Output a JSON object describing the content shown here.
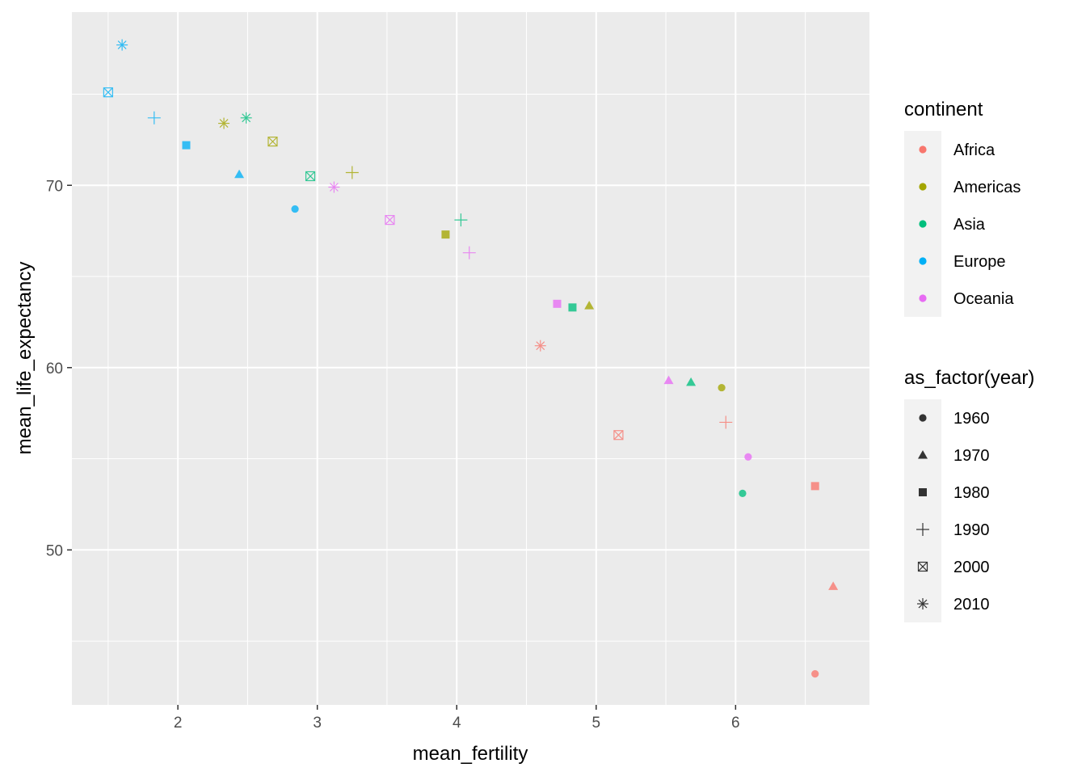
{
  "chart_data": {
    "type": "scatter",
    "xlabel": "mean_fertility",
    "ylabel": "mean_life_expectancy",
    "xlim": [
      1.24,
      6.96
    ],
    "ylim": [
      41.5,
      79.5
    ],
    "x_ticks": [
      2,
      3,
      4,
      5,
      6
    ],
    "y_ticks": [
      50,
      60,
      70
    ],
    "x_tick_labels": [
      "2",
      "3",
      "4",
      "5",
      "6"
    ],
    "y_tick_labels": [
      "50",
      "60",
      "70"
    ],
    "grid": true,
    "legend_position": "right",
    "colors": {
      "Africa": "#F8766D",
      "Americas": "#A3A500",
      "Asia": "#00BF7D",
      "Europe": "#00B0F6",
      "Oceania": "#E76BF3"
    },
    "shapes": {
      "1960": "circle",
      "1970": "triangle",
      "1980": "square",
      "1990": "plus",
      "2000": "square-cross",
      "2010": "asterisk"
    },
    "legends": [
      {
        "title": "continent",
        "kind": "color",
        "items": [
          "Africa",
          "Americas",
          "Asia",
          "Europe",
          "Oceania"
        ]
      },
      {
        "title": "as_factor(year)",
        "kind": "shape",
        "items": [
          "1960",
          "1970",
          "1980",
          "1990",
          "2000",
          "2010"
        ]
      }
    ],
    "points": [
      {
        "continent": "Africa",
        "year": "1960",
        "x": 6.57,
        "y": 43.2
      },
      {
        "continent": "Africa",
        "year": "1970",
        "x": 6.7,
        "y": 48.0
      },
      {
        "continent": "Africa",
        "year": "1980",
        "x": 6.57,
        "y": 53.5
      },
      {
        "continent": "Africa",
        "year": "1990",
        "x": 5.93,
        "y": 57.0
      },
      {
        "continent": "Africa",
        "year": "2000",
        "x": 5.16,
        "y": 56.3
      },
      {
        "continent": "Africa",
        "year": "2010",
        "x": 4.6,
        "y": 61.2
      },
      {
        "continent": "Americas",
        "year": "1960",
        "x": 5.9,
        "y": 58.9
      },
      {
        "continent": "Americas",
        "year": "1970",
        "x": 4.95,
        "y": 63.4
      },
      {
        "continent": "Americas",
        "year": "1980",
        "x": 3.92,
        "y": 67.3
      },
      {
        "continent": "Americas",
        "year": "1990",
        "x": 3.25,
        "y": 70.7
      },
      {
        "continent": "Americas",
        "year": "2000",
        "x": 2.68,
        "y": 72.4
      },
      {
        "continent": "Americas",
        "year": "2010",
        "x": 2.33,
        "y": 73.4
      },
      {
        "continent": "Asia",
        "year": "1960",
        "x": 6.05,
        "y": 53.1
      },
      {
        "continent": "Asia",
        "year": "1970",
        "x": 5.68,
        "y": 59.2
      },
      {
        "continent": "Asia",
        "year": "1980",
        "x": 4.83,
        "y": 63.3
      },
      {
        "continent": "Asia",
        "year": "1990",
        "x": 4.03,
        "y": 68.1
      },
      {
        "continent": "Asia",
        "year": "2000",
        "x": 2.95,
        "y": 70.5
      },
      {
        "continent": "Asia",
        "year": "2010",
        "x": 2.49,
        "y": 73.7
      },
      {
        "continent": "Europe",
        "year": "1960",
        "x": 2.84,
        "y": 68.7
      },
      {
        "continent": "Europe",
        "year": "1970",
        "x": 2.44,
        "y": 70.6
      },
      {
        "continent": "Europe",
        "year": "1980",
        "x": 2.06,
        "y": 72.2
      },
      {
        "continent": "Europe",
        "year": "1990",
        "x": 1.83,
        "y": 73.7
      },
      {
        "continent": "Europe",
        "year": "2000",
        "x": 1.5,
        "y": 75.1
      },
      {
        "continent": "Europe",
        "year": "2010",
        "x": 1.6,
        "y": 77.7
      },
      {
        "continent": "Oceania",
        "year": "1960",
        "x": 6.09,
        "y": 55.1
      },
      {
        "continent": "Oceania",
        "year": "1970",
        "x": 5.52,
        "y": 59.3
      },
      {
        "continent": "Oceania",
        "year": "1980",
        "x": 4.72,
        "y": 63.5
      },
      {
        "continent": "Oceania",
        "year": "1990",
        "x": 4.09,
        "y": 66.3
      },
      {
        "continent": "Oceania",
        "year": "2000",
        "x": 3.52,
        "y": 68.1
      },
      {
        "continent": "Oceania",
        "year": "2010",
        "x": 3.12,
        "y": 69.9
      }
    ]
  }
}
